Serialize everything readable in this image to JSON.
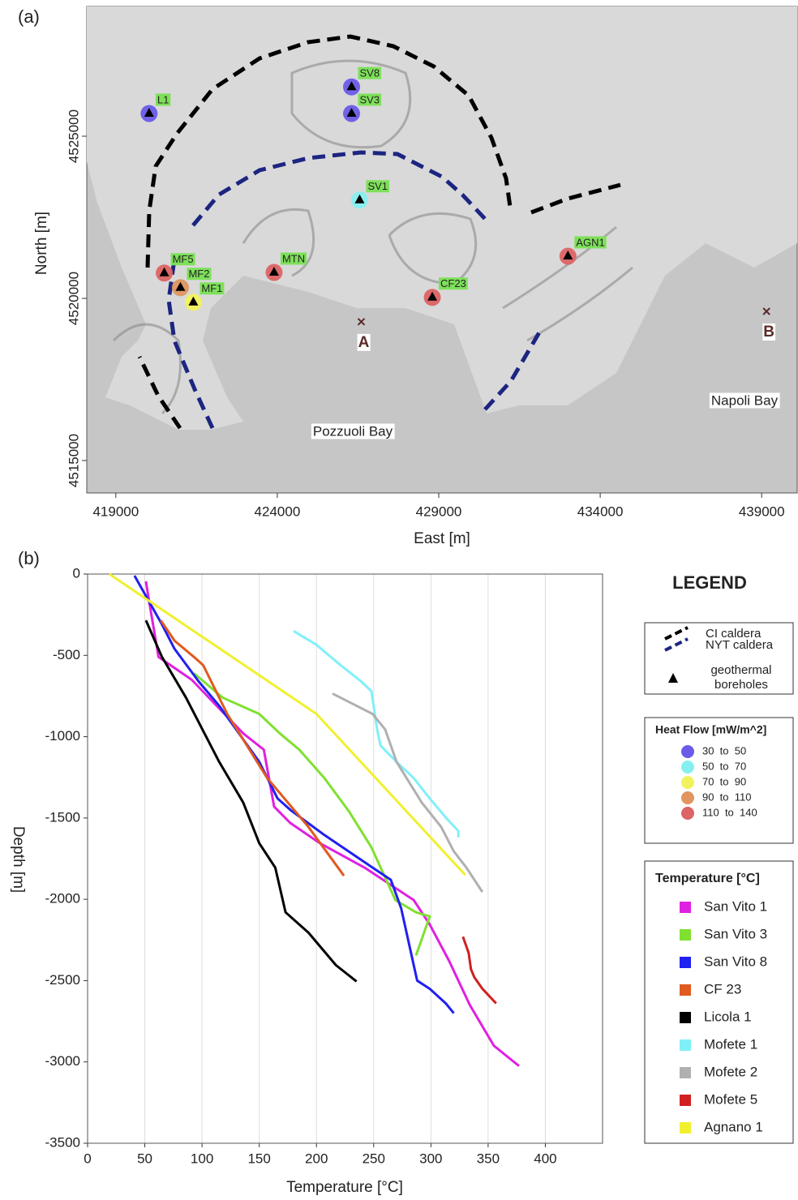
{
  "chart_data": [
    {
      "type": "map",
      "panel_label": "(a)",
      "x_label": "East [m]",
      "y_label": "North [m]",
      "xlim": [
        418100,
        440100
      ],
      "ylim": [
        4514000,
        4529000
      ],
      "xticks": [
        419000,
        424000,
        429000,
        434000,
        439000
      ],
      "yticks": [
        4515000,
        4520000,
        4525000
      ],
      "points": [
        {
          "label": "L1",
          "x": 420030,
          "y": 4525700,
          "color": "#6a5ce8"
        },
        {
          "label": "SV8",
          "x": 426300,
          "y": 4526520,
          "color": "#6a5ce8"
        },
        {
          "label": "SV3",
          "x": 426300,
          "y": 4525700,
          "color": "#6a5ce8"
        },
        {
          "label": "SV1",
          "x": 426550,
          "y": 4523030,
          "color": "#86f0f0"
        },
        {
          "label": "MF5",
          "x": 420500,
          "y": 4520780,
          "color": "#dc6464"
        },
        {
          "label": "MF2",
          "x": 421000,
          "y": 4520330,
          "color": "#e0965e"
        },
        {
          "label": "MF1",
          "x": 421400,
          "y": 4519880,
          "color": "#f2f25e"
        },
        {
          "label": "MTN",
          "x": 423900,
          "y": 4520800,
          "color": "#dc6464"
        },
        {
          "label": "CF23",
          "x": 428800,
          "y": 4520030,
          "color": "#dc6464"
        },
        {
          "label": "AGN1",
          "x": 433000,
          "y": 4521300,
          "color": "#dc6464"
        }
      ],
      "section_points": [
        {
          "label": "A",
          "x": 426600,
          "y": 4519280
        },
        {
          "label": "B",
          "x": 439150,
          "y": 4519600
        }
      ],
      "annotations": [
        "Pozzuoli Bay",
        "Napoli Bay"
      ]
    },
    {
      "type": "line",
      "panel_label": "(b)",
      "x_label": "Temperature [°C]",
      "y_label": "Depth [m]",
      "xlim": [
        0,
        450
      ],
      "ylim": [
        -3500,
        0
      ],
      "xticks": [
        0,
        50,
        100,
        150,
        200,
        250,
        300,
        350,
        400
      ],
      "yticks": [
        -3500,
        -3000,
        -2500,
        -2000,
        -1500,
        -1000,
        -500,
        0
      ],
      "grid": true,
      "series": [
        {
          "name": "San Vito 1",
          "color": "#e020e0",
          "x": [
            51,
            53,
            62,
            91,
            136,
            154,
            163,
            177,
            203,
            242,
            285,
            299,
            316,
            334,
            355,
            377
          ],
          "values": [
            -45,
            -135,
            -510,
            -650,
            -980,
            -1080,
            -1430,
            -1530,
            -1655,
            -1805,
            -2005,
            -2155,
            -2380,
            -2650,
            -2900,
            -3025
          ]
        },
        {
          "name": "San Vito 3",
          "color": "#80e030",
          "x": [
            93,
            118,
            150,
            168,
            185,
            207,
            228,
            248,
            269,
            287,
            299,
            287
          ],
          "values": [
            -610,
            -760,
            -860,
            -980,
            -1080,
            -1255,
            -1455,
            -1680,
            -2005,
            -2080,
            -2105,
            -2345
          ]
        },
        {
          "name": "San Vito 8",
          "color": "#2020f0",
          "x": [
            41,
            65,
            76,
            97,
            115,
            150,
            166,
            178,
            207,
            249,
            265,
            274,
            285,
            288,
            299,
            313,
            320
          ],
          "values": [
            -10,
            -310,
            -460,
            -660,
            -810,
            -1155,
            -1380,
            -1455,
            -1605,
            -1805,
            -1880,
            -2055,
            -2405,
            -2500,
            -2550,
            -2640,
            -2700
          ]
        },
        {
          "name": "CF 23",
          "color": "#e05a20",
          "x": [
            64,
            76,
            93,
            101,
            122,
            157,
            193,
            224
          ],
          "values": [
            -285,
            -410,
            -510,
            -560,
            -860,
            -1255,
            -1555,
            -1855
          ]
        },
        {
          "name": "Licola 1",
          "color": "#000000",
          "x": [
            51,
            65,
            86,
            115,
            136,
            150,
            164,
            173,
            193,
            217,
            235
          ],
          "values": [
            -285,
            -510,
            -760,
            -1155,
            -1405,
            -1655,
            -1805,
            -2080,
            -2205,
            -2405,
            -2505
          ]
        },
        {
          "name": "Mofete 1",
          "color": "#80f0f8",
          "x": [
            180,
            200,
            221,
            239,
            248,
            253,
            256,
            270,
            285,
            299,
            314,
            324,
            324
          ],
          "values": [
            -350,
            -435,
            -560,
            -660,
            -720,
            -955,
            -1055,
            -1155,
            -1255,
            -1380,
            -1505,
            -1580,
            -1620
          ]
        },
        {
          "name": "Mofete 2",
          "color": "#b0b0b0",
          "x": [
            214,
            235,
            249,
            260,
            270,
            292,
            309,
            320,
            331,
            345
          ],
          "values": [
            -735,
            -810,
            -860,
            -955,
            -1155,
            -1405,
            -1555,
            -1705,
            -1805,
            -1955
          ]
        },
        {
          "name": "Mofete 5",
          "color": "#d02020",
          "x": [
            328,
            333,
            335,
            338,
            345,
            357
          ],
          "values": [
            -2230,
            -2330,
            -2430,
            -2480,
            -2550,
            -2640
          ]
        },
        {
          "name": "Agnano 1",
          "color": "#f0f030",
          "x": [
            19,
            200,
            330
          ],
          "values": [
            0,
            -860,
            -1850
          ]
        }
      ],
      "legend": {
        "title": "LEGEND",
        "lines": [
          {
            "label": "CI caldera",
            "color": "#000000"
          },
          {
            "label": "NYT caldera",
            "color": "#1c2580"
          }
        ],
        "borehole_label": [
          "geothermal",
          "boreholes"
        ],
        "heat_flow_title": "Heat Flow [mW/m^2]",
        "heat_flow_classes": [
          {
            "label": "30  to  50",
            "color": "#6a5ce8"
          },
          {
            "label": "50  to  70",
            "color": "#86f0f0"
          },
          {
            "label": "70  to  90",
            "color": "#f2f25e"
          },
          {
            "label": "90  to  110",
            "color": "#e0965e"
          },
          {
            "label": "110  to  140",
            "color": "#dc6464"
          }
        ],
        "series_title": "Temperature [°C]"
      }
    }
  ]
}
